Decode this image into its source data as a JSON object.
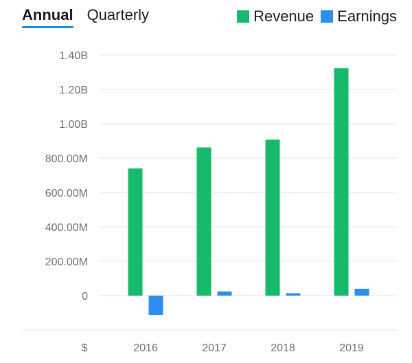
{
  "tabs": [
    {
      "label": "Annual",
      "active": true
    },
    {
      "label": "Quarterly",
      "active": false
    }
  ],
  "legend": [
    {
      "name": "Revenue",
      "color": "#17b96a"
    },
    {
      "name": "Earnings",
      "color": "#2d8ef0"
    }
  ],
  "currency_label": "$",
  "chart_data": {
    "type": "bar",
    "categories": [
      "2016",
      "2017",
      "2018",
      "2019"
    ],
    "series": [
      {
        "name": "Revenue",
        "color": "#17b96a",
        "values": [
          740000000,
          862000000,
          908000000,
          1323000000
        ]
      },
      {
        "name": "Earnings",
        "color": "#2d8ef0",
        "values": [
          -112000000,
          24000000,
          14000000,
          40000000
        ]
      }
    ],
    "y_ticks": [
      {
        "value": 0,
        "label": "0"
      },
      {
        "value": 200000000,
        "label": "200.00M"
      },
      {
        "value": 400000000,
        "label": "400.00M"
      },
      {
        "value": 600000000,
        "label": "600.00M"
      },
      {
        "value": 800000000,
        "label": "800.00M"
      },
      {
        "value": 1000000000,
        "label": "1.00B"
      },
      {
        "value": 1200000000,
        "label": "1.20B"
      },
      {
        "value": 1400000000,
        "label": "1.40B"
      }
    ],
    "ylim": [
      -200000000,
      1400000000
    ],
    "grid": true,
    "legend_position": "top-right"
  }
}
